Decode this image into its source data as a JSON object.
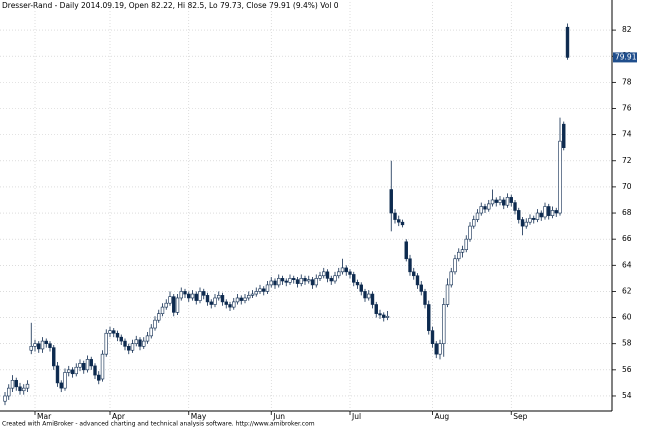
{
  "chart_data": {
    "type": "candlestick",
    "title": "Dresser-Rand - Daily 2014.09.19, Open 82.22, Hi 82.5, Lo 79.73, Close 79.91 (9.4%) Vol 0",
    "footer": "Created with AmiBroker - advanced charting and technical analysis software. http://www.amibroker.com",
    "up_color": "#ffffff",
    "down_color": "#0d2a4f",
    "edge_color": "#0d2a4f",
    "last_label_color": "#1f4e8c",
    "ylim": [
      52.85,
      84.15
    ],
    "yticks": [
      54,
      56,
      58,
      60,
      62,
      64,
      66,
      68,
      70,
      72,
      74,
      76,
      78,
      80,
      82
    ],
    "grid": true,
    "categories": [
      null,
      null,
      null,
      null,
      null,
      null,
      null,
      null,
      "Mar",
      null,
      null,
      null,
      null,
      null,
      null,
      null,
      null,
      null,
      null,
      null,
      null,
      null,
      null,
      null,
      null,
      null,
      null,
      null,
      "Apr",
      null,
      null,
      null,
      null,
      null,
      null,
      null,
      null,
      null,
      null,
      null,
      null,
      null,
      null,
      null,
      null,
      null,
      null,
      null,
      null,
      "May",
      null,
      null,
      null,
      null,
      null,
      null,
      null,
      null,
      null,
      null,
      null,
      null,
      null,
      null,
      null,
      null,
      null,
      null,
      null,
      null,
      null,
      "Jun",
      null,
      null,
      null,
      null,
      null,
      null,
      null,
      null,
      null,
      null,
      null,
      null,
      null,
      null,
      null,
      null,
      null,
      null,
      null,
      null,
      "Jul",
      null,
      null,
      null,
      null,
      null,
      null,
      null,
      null,
      null,
      null,
      null,
      null,
      null,
      null,
      null,
      null,
      null,
      null,
      null,
      null,
      null,
      "Aug",
      null,
      null,
      null,
      null,
      null,
      null,
      null,
      null,
      null,
      null,
      null,
      null,
      null,
      null,
      null,
      null,
      null,
      null,
      null,
      null,
      "Sep",
      null,
      null,
      null,
      null,
      null,
      null,
      null,
      null,
      null,
      null,
      null,
      null,
      null,
      null
    ],
    "ohlc": [
      [
        53.6,
        54.3,
        53.3,
        54.0
      ],
      [
        54.0,
        54.9,
        53.7,
        54.6
      ],
      [
        54.6,
        55.6,
        54.3,
        55.2
      ],
      [
        55.2,
        55.4,
        54.4,
        54.7
      ],
      [
        54.7,
        55.0,
        54.1,
        54.4
      ],
      [
        54.4,
        54.9,
        54.1,
        54.6
      ],
      [
        54.6,
        55.2,
        54.3,
        54.9
      ],
      [
        57.5,
        59.6,
        57.2,
        57.8
      ],
      [
        57.8,
        58.3,
        57.4,
        58.0
      ],
      [
        58.0,
        58.2,
        57.3,
        57.6
      ],
      [
        57.6,
        58.5,
        57.3,
        58.2
      ],
      [
        58.2,
        58.4,
        57.7,
        58.0
      ],
      [
        58.0,
        58.2,
        57.4,
        57.7
      ],
      [
        57.7,
        57.9,
        56.0,
        56.3
      ],
      [
        56.3,
        56.6,
        54.7,
        55.0
      ],
      [
        55.0,
        55.2,
        54.3,
        54.6
      ],
      [
        54.6,
        56.1,
        54.4,
        55.8
      ],
      [
        55.8,
        56.3,
        55.5,
        56.0
      ],
      [
        56.0,
        56.2,
        55.4,
        55.7
      ],
      [
        55.7,
        56.5,
        55.5,
        56.2
      ],
      [
        56.2,
        56.8,
        55.9,
        56.5
      ],
      [
        56.5,
        56.7,
        55.7,
        56.0
      ],
      [
        56.0,
        57.1,
        55.8,
        56.8
      ],
      [
        56.8,
        57.0,
        56.0,
        56.3
      ],
      [
        56.3,
        56.5,
        55.3,
        55.6
      ],
      [
        55.6,
        55.9,
        54.9,
        55.2
      ],
      [
        55.3,
        57.5,
        55.1,
        57.2
      ],
      [
        57.2,
        59.1,
        57.0,
        58.8
      ],
      [
        58.8,
        59.3,
        58.5,
        59.0
      ],
      [
        59.0,
        59.2,
        58.5,
        58.8
      ],
      [
        58.8,
        59.0,
        58.2,
        58.5
      ],
      [
        58.5,
        58.7,
        57.9,
        58.2
      ],
      [
        58.2,
        58.4,
        57.5,
        57.8
      ],
      [
        57.8,
        58.0,
        57.2,
        57.5
      ],
      [
        57.5,
        58.3,
        57.3,
        58.0
      ],
      [
        58.0,
        58.6,
        57.8,
        58.3
      ],
      [
        58.3,
        58.5,
        57.5,
        57.8
      ],
      [
        57.8,
        58.5,
        57.6,
        58.2
      ],
      [
        58.2,
        58.9,
        58.0,
        58.6
      ],
      [
        58.6,
        59.5,
        58.4,
        59.2
      ],
      [
        59.2,
        60.1,
        59.0,
        59.8
      ],
      [
        59.8,
        60.6,
        59.6,
        60.3
      ],
      [
        60.3,
        61.1,
        60.1,
        60.8
      ],
      [
        60.8,
        61.4,
        60.6,
        61.1
      ],
      [
        61.1,
        62.0,
        60.9,
        61.6
      ],
      [
        61.6,
        61.8,
        60.1,
        60.4
      ],
      [
        60.4,
        61.8,
        60.2,
        61.5
      ],
      [
        61.5,
        62.3,
        61.3,
        62.0
      ],
      [
        62.0,
        62.2,
        61.5,
        61.8
      ],
      [
        61.8,
        62.0,
        61.2,
        61.5
      ],
      [
        61.5,
        62.1,
        61.3,
        61.8
      ],
      [
        61.8,
        62.0,
        61.0,
        61.3
      ],
      [
        61.3,
        62.3,
        61.1,
        62.0
      ],
      [
        62.0,
        62.2,
        61.4,
        61.7
      ],
      [
        61.7,
        61.9,
        60.9,
        61.2
      ],
      [
        61.2,
        61.4,
        60.7,
        61.0
      ],
      [
        61.0,
        61.8,
        60.8,
        61.5
      ],
      [
        61.5,
        62.0,
        61.3,
        61.7
      ],
      [
        61.7,
        61.9,
        60.9,
        61.2
      ],
      [
        61.2,
        61.4,
        60.7,
        61.0
      ],
      [
        61.0,
        61.2,
        60.5,
        60.8
      ],
      [
        60.8,
        61.5,
        60.6,
        61.2
      ],
      [
        61.2,
        61.8,
        61.0,
        61.5
      ],
      [
        61.5,
        61.7,
        61.0,
        61.3
      ],
      [
        61.3,
        61.8,
        61.1,
        61.5
      ],
      [
        61.5,
        62.0,
        61.3,
        61.7
      ],
      [
        61.7,
        62.1,
        61.5,
        61.8
      ],
      [
        61.8,
        62.3,
        61.6,
        62.0
      ],
      [
        62.0,
        62.5,
        61.8,
        62.2
      ],
      [
        62.2,
        62.4,
        61.7,
        62.0
      ],
      [
        62.0,
        62.8,
        61.8,
        62.5
      ],
      [
        62.5,
        63.1,
        62.3,
        62.8
      ],
      [
        62.8,
        63.0,
        62.2,
        62.5
      ],
      [
        62.5,
        63.3,
        62.3,
        63.0
      ],
      [
        63.0,
        63.2,
        62.5,
        62.8
      ],
      [
        62.8,
        63.0,
        62.4,
        62.7
      ],
      [
        62.7,
        63.3,
        62.5,
        63.0
      ],
      [
        63.0,
        63.2,
        62.6,
        62.9
      ],
      [
        62.9,
        63.1,
        62.3,
        62.6
      ],
      [
        62.6,
        63.3,
        62.4,
        63.0
      ],
      [
        63.0,
        63.2,
        62.5,
        62.8
      ],
      [
        62.8,
        63.2,
        62.6,
        62.9
      ],
      [
        62.9,
        63.1,
        62.2,
        62.5
      ],
      [
        62.5,
        63.3,
        62.3,
        63.0
      ],
      [
        63.0,
        63.5,
        62.8,
        63.2
      ],
      [
        63.2,
        63.8,
        63.0,
        63.5
      ],
      [
        63.5,
        63.7,
        62.7,
        63.0
      ],
      [
        63.0,
        63.2,
        62.5,
        62.8
      ],
      [
        62.8,
        63.5,
        62.6,
        63.2
      ],
      [
        63.2,
        63.8,
        63.0,
        63.5
      ],
      [
        63.5,
        64.5,
        63.3,
        63.8
      ],
      [
        63.8,
        64.0,
        63.2,
        63.5
      ],
      [
        63.5,
        63.7,
        63.0,
        63.3
      ],
      [
        63.3,
        63.5,
        62.4,
        62.7
      ],
      [
        62.7,
        62.9,
        62.2,
        62.5
      ],
      [
        62.5,
        62.7,
        61.7,
        62.0
      ],
      [
        62.0,
        62.2,
        61.2,
        61.5
      ],
      [
        61.5,
        62.1,
        61.3,
        61.8
      ],
      [
        61.8,
        62.0,
        60.7,
        61.0
      ],
      [
        61.0,
        61.2,
        60.0,
        60.3
      ],
      [
        60.3,
        60.6,
        59.9,
        60.2
      ],
      [
        60.2,
        60.4,
        59.7,
        60.0
      ],
      [
        60.0,
        60.5,
        59.8,
        60.1
      ],
      [
        69.8,
        72.0,
        66.6,
        68.0
      ],
      [
        68.0,
        68.3,
        67.2,
        67.5
      ],
      [
        67.5,
        67.8,
        67.0,
        67.3
      ],
      [
        67.3,
        67.5,
        66.9,
        67.1
      ],
      [
        65.8,
        66.0,
        64.3,
        64.5
      ],
      [
        64.5,
        64.8,
        63.2,
        63.5
      ],
      [
        63.5,
        63.8,
        62.9,
        63.2
      ],
      [
        63.2,
        63.4,
        62.2,
        62.5
      ],
      [
        62.5,
        62.8,
        61.7,
        62.0
      ],
      [
        62.0,
        62.2,
        60.7,
        61.0
      ],
      [
        61.0,
        61.3,
        58.7,
        59.0
      ],
      [
        59.0,
        59.3,
        57.7,
        58.0
      ],
      [
        58.0,
        58.2,
        56.9,
        57.2
      ],
      [
        57.2,
        58.3,
        56.8,
        58.0
      ],
      [
        58.0,
        61.5,
        57.0,
        61.0
      ],
      [
        61.0,
        63.0,
        60.8,
        62.5
      ],
      [
        62.5,
        63.8,
        62.3,
        63.5
      ],
      [
        63.5,
        64.8,
        63.3,
        64.5
      ],
      [
        64.5,
        65.3,
        64.3,
        65.0
      ],
      [
        65.0,
        65.5,
        64.6,
        65.2
      ],
      [
        65.2,
        66.3,
        65.0,
        66.0
      ],
      [
        66.0,
        67.3,
        65.8,
        67.0
      ],
      [
        67.0,
        67.8,
        66.8,
        67.5
      ],
      [
        67.5,
        68.3,
        67.3,
        68.0
      ],
      [
        68.0,
        68.8,
        67.8,
        68.5
      ],
      [
        68.5,
        68.7,
        68.0,
        68.3
      ],
      [
        68.3,
        69.0,
        68.1,
        68.7
      ],
      [
        68.7,
        69.8,
        68.5,
        69.0
      ],
      [
        69.0,
        69.2,
        68.5,
        68.8
      ],
      [
        68.8,
        69.3,
        68.6,
        69.0
      ],
      [
        69.0,
        69.2,
        68.3,
        68.6
      ],
      [
        68.6,
        69.5,
        68.4,
        69.2
      ],
      [
        69.2,
        69.4,
        68.5,
        68.8
      ],
      [
        68.8,
        69.0,
        67.9,
        68.2
      ],
      [
        68.2,
        68.4,
        67.2,
        67.5
      ],
      [
        67.5,
        67.7,
        66.3,
        67.0
      ],
      [
        67.0,
        67.6,
        66.8,
        67.3
      ],
      [
        67.3,
        67.9,
        67.1,
        67.6
      ],
      [
        67.6,
        67.8,
        67.2,
        67.5
      ],
      [
        67.5,
        68.3,
        67.3,
        68.0
      ],
      [
        68.0,
        68.2,
        67.4,
        67.7
      ],
      [
        67.7,
        68.8,
        67.5,
        68.5
      ],
      [
        68.5,
        68.7,
        67.5,
        67.8
      ],
      [
        67.8,
        68.5,
        67.6,
        68.2
      ],
      [
        68.2,
        68.4,
        67.7,
        68.0
      ],
      [
        68.0,
        75.3,
        67.8,
        73.5
      ],
      [
        74.8,
        75.0,
        72.8,
        73.0
      ],
      [
        82.22,
        82.5,
        79.73,
        79.91
      ]
    ]
  }
}
